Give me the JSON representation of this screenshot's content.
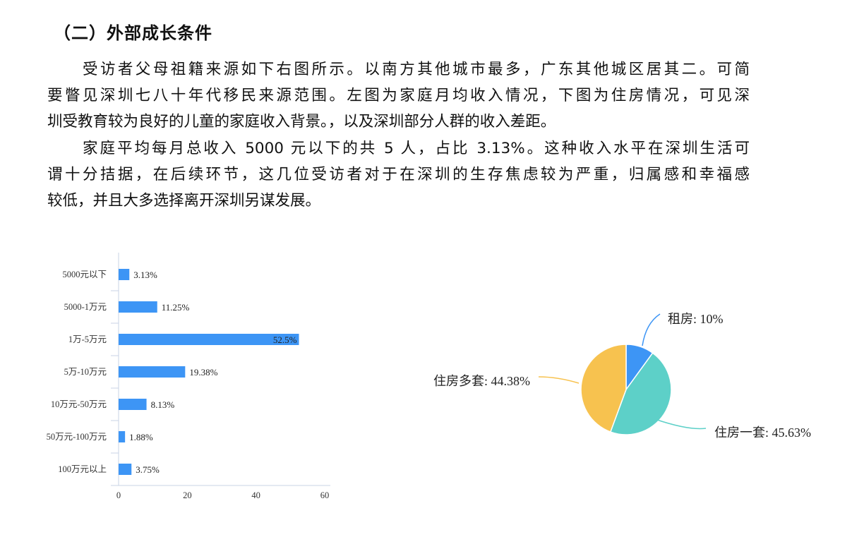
{
  "section_title": "（二）外部成长条件",
  "paragraphs": [
    {
      "lines": [
        "受访者父母祖籍来源如下右图所示。以南方其他城市最多，广东其他城区居其二。可简",
        "要瞥见深圳七八十年代移民来源范围。左图为家庭月均收入情况，下图为住房情况，可见深",
        "圳受教育较为良好的儿童的家庭收入背景。，以及深圳部分人群的收入差距。"
      ]
    },
    {
      "lines": [
        "家庭平均每月总收入 5000 元以下的共 5 人，占比 3.13%。这种收入水平在深圳生活可",
        "谓十分拮据，在后续环节，这几位受访者对于在深圳的生存焦虑较为严重，归属感和幸福感",
        "较低，并且大多选择离开深圳另谋发展。"
      ]
    }
  ],
  "chart_data": [
    {
      "type": "bar",
      "orientation": "horizontal",
      "categories": [
        "5000元以下",
        "5000-1万元",
        "1万-5万元",
        "5万-10万元",
        "10万元-50万元",
        "50万元-100万元",
        "100万元以上"
      ],
      "values": [
        3.13,
        11.25,
        52.5,
        19.38,
        8.13,
        1.88,
        3.75
      ],
      "data_labels": [
        "3.13%",
        "11.25%",
        "52.5%",
        "19.38%",
        "8.13%",
        "1.88%",
        "3.75%"
      ],
      "xlim": [
        0,
        60
      ],
      "xticks": [
        "0",
        "20",
        "40",
        "60"
      ],
      "color": "#3d95f5",
      "grid": false
    },
    {
      "type": "pie",
      "slices": [
        {
          "label": "租房: 10%",
          "value": 10,
          "color": "#3d95f5"
        },
        {
          "label": "住房一套: 45.63%",
          "value": 45.63,
          "color": "#5dd0c8"
        },
        {
          "label": "住房多套: 44.38%",
          "value": 44.38,
          "color": "#f7c24f"
        }
      ]
    }
  ]
}
